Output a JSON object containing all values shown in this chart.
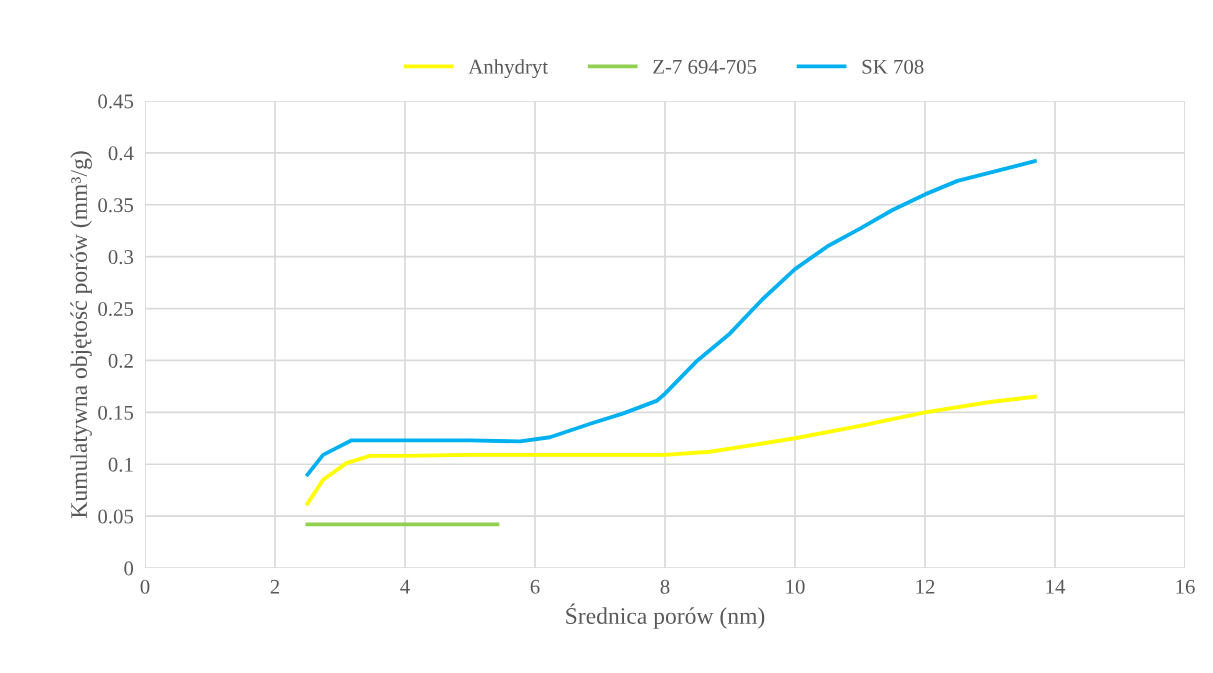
{
  "chart_data": {
    "type": "line",
    "xlabel": "Średnica porów (nm)",
    "ylabel": "Kumulatywna objętość porów (mm³/g)",
    "xlim": [
      0,
      16
    ],
    "xticks": [
      0,
      2,
      4,
      6,
      8,
      10,
      12,
      14,
      16
    ],
    "ylim": [
      0,
      0.45
    ],
    "yticks": [
      0,
      0.05,
      0.1,
      0.15,
      0.2,
      0.25,
      0.3,
      0.35,
      0.4,
      0.45
    ],
    "grid": true,
    "legend": "top",
    "marker": "none",
    "line_style": "solid",
    "series": [
      {
        "name": "Anhydryt",
        "color": "#ffff00",
        "x": [
          2.5,
          2.74,
          3.1,
          3.46,
          4,
          5,
          6,
          7,
          8,
          8.69,
          9,
          10,
          11,
          12,
          13,
          13.69
        ],
        "values": [
          0.062,
          0.085,
          0.101,
          0.108,
          0.108,
          0.109,
          0.109,
          0.109,
          0.109,
          0.112,
          0.115,
          0.125,
          0.137,
          0.15,
          0.16,
          0.165
        ]
      },
      {
        "name": "Z-7 694-705",
        "color": "#92d050",
        "x": [
          2.5,
          5.42
        ],
        "values": [
          0.042,
          0.042
        ]
      },
      {
        "name": "SK 708",
        "color": "#00b0f0",
        "x": [
          2.5,
          2.74,
          3.18,
          4,
          5,
          5.77,
          6.23,
          6.85,
          7.36,
          7.87,
          8,
          8.5,
          9,
          9.5,
          10,
          10.5,
          11,
          11.5,
          12,
          12.5,
          13,
          13.69
        ],
        "values": [
          0.09,
          0.109,
          0.123,
          0.123,
          0.123,
          0.122,
          0.126,
          0.139,
          0.149,
          0.161,
          0.168,
          0.2,
          0.226,
          0.259,
          0.288,
          0.31,
          0.327,
          0.345,
          0.36,
          0.373,
          0.381,
          0.392
        ]
      }
    ]
  }
}
